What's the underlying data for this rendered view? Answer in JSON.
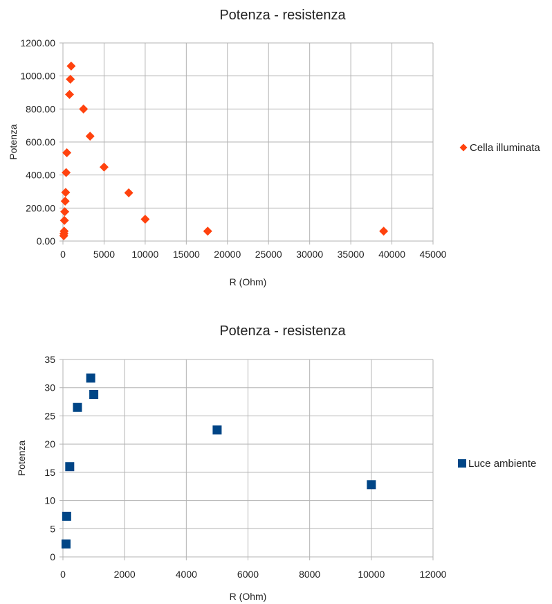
{
  "chart_data": [
    {
      "type": "scatter",
      "title": "Potenza - resistenza",
      "xlabel": "R (Ohm)",
      "ylabel": "Potenza",
      "xlim": [
        0,
        45000
      ],
      "ylim": [
        0,
        1200
      ],
      "x_ticks": [
        "0",
        "5000",
        "10000",
        "15000",
        "20000",
        "25000",
        "30000",
        "35000",
        "40000",
        "45000"
      ],
      "y_ticks": [
        "0.00",
        "200.00",
        "400.00",
        "600.00",
        "800.00",
        "1000.00",
        "1200.00"
      ],
      "grid": true,
      "legend_position": "right",
      "marker": "diamond",
      "series": [
        {
          "name": "Cella illuminata",
          "color": "#ff420e",
          "points": [
            {
              "x": 1000,
              "y": 1060
            },
            {
              "x": 900,
              "y": 980
            },
            {
              "x": 800,
              "y": 888
            },
            {
              "x": 2500,
              "y": 800
            },
            {
              "x": 3300,
              "y": 635
            },
            {
              "x": 470,
              "y": 535
            },
            {
              "x": 5000,
              "y": 448
            },
            {
              "x": 390,
              "y": 415
            },
            {
              "x": 330,
              "y": 295
            },
            {
              "x": 8000,
              "y": 292
            },
            {
              "x": 270,
              "y": 242
            },
            {
              "x": 220,
              "y": 178
            },
            {
              "x": 180,
              "y": 125
            },
            {
              "x": 10000,
              "y": 132
            },
            {
              "x": 150,
              "y": 60
            },
            {
              "x": 120,
              "y": 45
            },
            {
              "x": 100,
              "y": 32
            },
            {
              "x": 17600,
              "y": 60
            },
            {
              "x": 39000,
              "y": 60
            }
          ]
        }
      ]
    },
    {
      "type": "scatter",
      "title": "Potenza - resistenza",
      "xlabel": "R (Ohm)",
      "ylabel": "Potenza",
      "xlim": [
        0,
        12000
      ],
      "ylim": [
        0,
        35
      ],
      "x_ticks": [
        "0",
        "2000",
        "4000",
        "6000",
        "8000",
        "10000",
        "12000"
      ],
      "y_ticks": [
        "0",
        "5",
        "10",
        "15",
        "20",
        "25",
        "30",
        "35"
      ],
      "grid": true,
      "legend_position": "right",
      "marker": "square",
      "series": [
        {
          "name": "Luce ambiente",
          "color": "#004586",
          "points": [
            {
              "x": 900,
              "y": 31.7
            },
            {
              "x": 1000,
              "y": 28.8
            },
            {
              "x": 470,
              "y": 26.5
            },
            {
              "x": 5000,
              "y": 22.5
            },
            {
              "x": 220,
              "y": 16.0
            },
            {
              "x": 10000,
              "y": 12.8
            },
            {
              "x": 120,
              "y": 7.2
            },
            {
              "x": 100,
              "y": 2.3
            }
          ]
        }
      ]
    }
  ]
}
